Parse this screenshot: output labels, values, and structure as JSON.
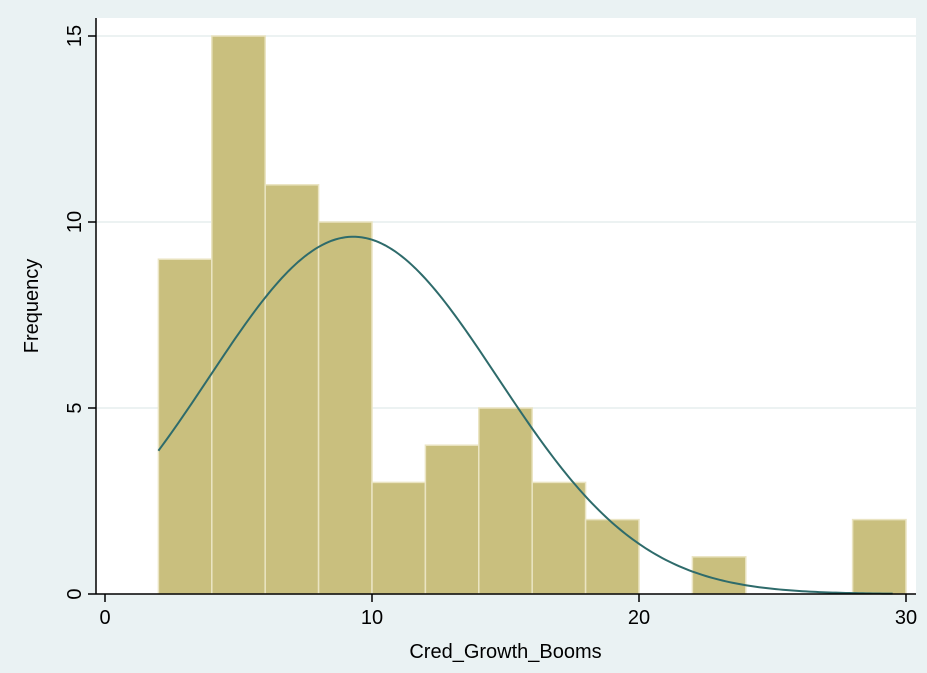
{
  "chart_data": {
    "type": "bar",
    "histogram": true,
    "title": "",
    "xlabel": "Cred_Growth_Booms",
    "ylabel": "Frequency",
    "xlim": [
      0,
      30
    ],
    "ylim": [
      0,
      15
    ],
    "xticks": [
      0,
      10,
      20,
      30
    ],
    "yticks": [
      0,
      5,
      10,
      15
    ],
    "grid": true,
    "legend": "none",
    "colors": {
      "background": "#eaf2f3",
      "plot_area": "#ffffff",
      "bar_fill": "#c9bf7e",
      "bar_edge": "#eae4c2",
      "curve": "#2e6b6b",
      "grid": "#e6eeee",
      "axis": "#000000"
    },
    "bins": [
      {
        "start": 2,
        "end": 4,
        "count": 9
      },
      {
        "start": 4,
        "end": 6,
        "count": 15
      },
      {
        "start": 6,
        "end": 8,
        "count": 11
      },
      {
        "start": 8,
        "end": 10,
        "count": 10
      },
      {
        "start": 10,
        "end": 12,
        "count": 3
      },
      {
        "start": 12,
        "end": 14,
        "count": 4
      },
      {
        "start": 14,
        "end": 16,
        "count": 5
      },
      {
        "start": 16,
        "end": 18,
        "count": 3
      },
      {
        "start": 18,
        "end": 20,
        "count": 2
      },
      {
        "start": 20,
        "end": 22,
        "count": 0
      },
      {
        "start": 22,
        "end": 24,
        "count": 1
      },
      {
        "start": 24,
        "end": 26,
        "count": 0
      },
      {
        "start": 26,
        "end": 28,
        "count": 0
      },
      {
        "start": 28,
        "end": 30,
        "count": 2
      }
    ],
    "normal_curve": {
      "mean": 9.3,
      "sd": 5.4,
      "x_range": [
        2,
        29.5
      ]
    }
  }
}
